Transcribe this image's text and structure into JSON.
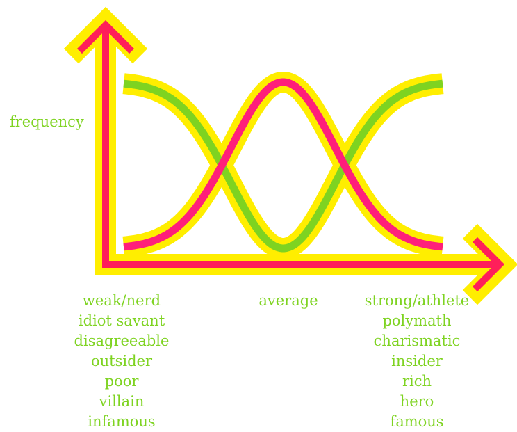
{
  "chart_data": {
    "type": "line",
    "title": "",
    "xlabel": "",
    "ylabel": "frequency",
    "series": [
      {
        "shape": "inverted-bell",
        "stroke": "#7ed321"
      },
      {
        "shape": "bell",
        "stroke": "#ff1f7a"
      }
    ],
    "outline_color": "#ffee00",
    "axis_color": "#ff1f5a",
    "category_labels": {
      "left": [
        "weak/nerd",
        "idiot savant",
        "disagreeable",
        "outsider",
        "poor",
        "villain",
        "infamous"
      ],
      "middle": [
        "average"
      ],
      "right": [
        "strong/athlete",
        "polymath",
        "charismatic",
        "insider",
        "rich",
        "hero",
        "famous"
      ]
    }
  }
}
